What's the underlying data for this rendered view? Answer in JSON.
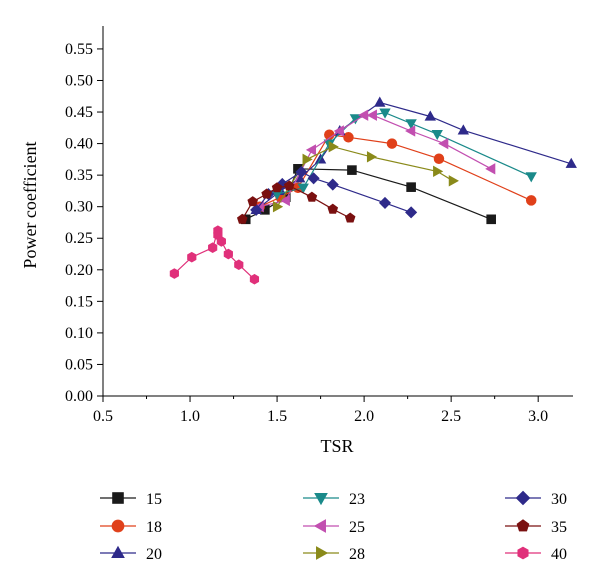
{
  "chart_data": {
    "type": "line",
    "xlabel": "TSR",
    "ylabel": "Power coefficient",
    "xlim": [
      0.5,
      3.2
    ],
    "ylim": [
      0.0,
      0.58
    ],
    "xticks": [
      "0.5",
      "1.0",
      "1.5",
      "2.0",
      "2.5",
      "3.0"
    ],
    "yticks": [
      "0.00",
      "0.05",
      "0.10",
      "0.15",
      "0.20",
      "0.25",
      "0.30",
      "0.35",
      "0.40",
      "0.45",
      "0.50",
      "0.55"
    ],
    "grid": false,
    "legend_position": "bottom",
    "series": [
      {
        "name": "15",
        "color": "#1a1a1a",
        "marker": "square",
        "x": [
          1.32,
          1.43,
          1.55,
          1.62,
          1.93,
          2.27,
          2.73
        ],
        "y": [
          0.28,
          0.295,
          0.315,
          0.36,
          0.358,
          0.331,
          0.28
        ]
      },
      {
        "name": "18",
        "color": "#e0401a",
        "marker": "circle",
        "x": [
          1.4,
          1.52,
          1.62,
          1.8,
          1.91,
          2.16,
          2.43,
          2.96
        ],
        "y": [
          0.3,
          0.315,
          0.33,
          0.414,
          0.41,
          0.4,
          0.376,
          0.31
        ]
      },
      {
        "name": "20",
        "color": "#2e2a8a",
        "marker": "triangle-up",
        "x": [
          1.38,
          1.52,
          1.63,
          1.75,
          1.86,
          2.09,
          2.38,
          2.57,
          3.19
        ],
        "y": [
          0.295,
          0.325,
          0.345,
          0.375,
          0.42,
          0.465,
          0.443,
          0.421,
          0.368
        ]
      },
      {
        "name": "23",
        "color": "#1a8a8a",
        "marker": "triangle-down",
        "x": [
          1.5,
          1.65,
          1.8,
          1.95,
          2.12,
          2.27,
          2.42,
          2.96
        ],
        "y": [
          0.32,
          0.33,
          0.4,
          0.44,
          0.449,
          0.432,
          0.415,
          0.348
        ]
      },
      {
        "name": "25",
        "color": "#c24fb0",
        "marker": "triangle-left",
        "x": [
          1.4,
          1.55,
          1.7,
          1.86,
          2.0,
          2.05,
          2.27,
          2.46,
          2.73
        ],
        "y": [
          0.3,
          0.31,
          0.39,
          0.42,
          0.445,
          0.445,
          0.42,
          0.4,
          0.36
        ]
      },
      {
        "name": "28",
        "color": "#8a8a1a",
        "marker": "triangle-right",
        "x": [
          1.5,
          1.67,
          1.82,
          2.04,
          2.42,
          2.51
        ],
        "y": [
          0.3,
          0.375,
          0.395,
          0.379,
          0.356,
          0.341
        ]
      },
      {
        "name": "30",
        "color": "#2e2a8a",
        "marker": "diamond",
        "x": [
          1.38,
          1.45,
          1.53,
          1.64,
          1.71,
          1.82,
          2.12,
          2.27
        ],
        "y": [
          0.295,
          0.32,
          0.336,
          0.355,
          0.345,
          0.335,
          0.306,
          0.291
        ]
      },
      {
        "name": "35",
        "color": "#7a1010",
        "marker": "pentagon",
        "x": [
          1.3,
          1.36,
          1.44,
          1.5,
          1.57,
          1.7,
          1.82,
          1.92
        ],
        "y": [
          0.28,
          0.308,
          0.32,
          0.33,
          0.333,
          0.315,
          0.296,
          0.282
        ]
      },
      {
        "name": "40",
        "color": "#e0307a",
        "marker": "hexagon",
        "x": [
          0.91,
          1.01,
          1.13,
          1.16,
          1.16,
          1.18,
          1.22,
          1.28,
          1.37
        ],
        "y": [
          0.194,
          0.22,
          0.235,
          0.262,
          0.255,
          0.245,
          0.225,
          0.208,
          0.185
        ]
      }
    ]
  }
}
